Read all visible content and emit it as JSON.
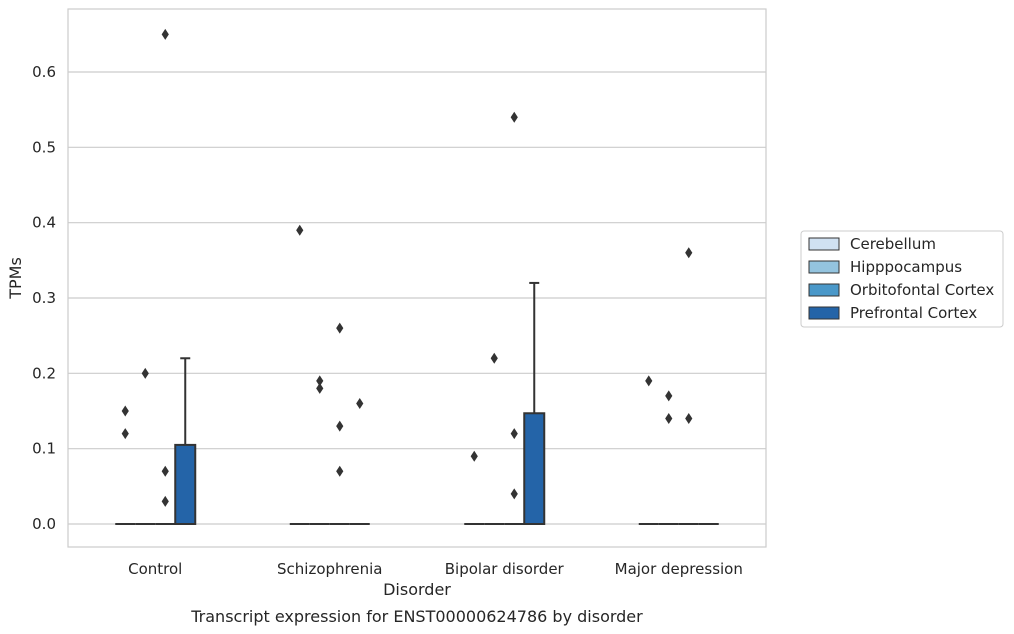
{
  "chart_data": {
    "type": "box",
    "title": "",
    "caption": "Transcript expression for ENST00000624786 by disorder",
    "xlabel": "Disorder",
    "ylabel": "TPMs",
    "ylim": [
      -0.032,
      0.68
    ],
    "yticks": [
      0.0,
      0.1,
      0.2,
      0.3,
      0.4,
      0.5,
      0.6
    ],
    "ytick_labels": [
      "0.0",
      "0.1",
      "0.2",
      "0.3",
      "0.4",
      "0.5",
      "0.6"
    ],
    "grid": true,
    "legend_position": "right",
    "categories": [
      "Control",
      "Schizophrenia",
      "Bipolar disorder",
      "Major depression"
    ],
    "series": [
      {
        "name": "Cerebellum",
        "color": "#d0e1f2",
        "boxes": [
          {
            "min": 0,
            "q1": 0,
            "median": 0,
            "q3": 0,
            "max": 0,
            "outliers": [
              0.15,
              0.12
            ]
          },
          {
            "min": 0,
            "q1": 0,
            "median": 0,
            "q3": 0,
            "max": 0,
            "outliers": [
              0.39
            ]
          },
          {
            "min": 0,
            "q1": 0,
            "median": 0,
            "q3": 0,
            "max": 0,
            "outliers": [
              0.09
            ]
          },
          {
            "min": 0,
            "q1": 0,
            "median": 0,
            "q3": 0,
            "max": 0,
            "outliers": [
              0.19
            ]
          }
        ]
      },
      {
        "name": "Hipppocampus",
        "color": "#94c4df",
        "boxes": [
          {
            "min": 0,
            "q1": 0,
            "median": 0,
            "q3": 0,
            "max": 0,
            "outliers": [
              0.2
            ]
          },
          {
            "min": 0,
            "q1": 0,
            "median": 0,
            "q3": 0,
            "max": 0,
            "outliers": [
              0.19,
              0.18
            ]
          },
          {
            "min": 0,
            "q1": 0,
            "median": 0,
            "q3": 0,
            "max": 0,
            "outliers": [
              0.22
            ]
          },
          {
            "min": 0,
            "q1": 0,
            "median": 0,
            "q3": 0,
            "max": 0,
            "outliers": [
              0.17,
              0.14
            ]
          }
        ]
      },
      {
        "name": "Orbitofontal Cortex",
        "color": "#4a98c9",
        "boxes": [
          {
            "min": 0,
            "q1": 0,
            "median": 0,
            "q3": 0,
            "max": 0,
            "outliers": [
              0.65,
              0.07,
              0.03
            ]
          },
          {
            "min": 0,
            "q1": 0,
            "median": 0,
            "q3": 0,
            "max": 0,
            "outliers": [
              0.26,
              0.13,
              0.07
            ]
          },
          {
            "min": 0,
            "q1": 0,
            "median": 0,
            "q3": 0,
            "max": 0,
            "outliers": [
              0.54,
              0.12,
              0.04
            ]
          },
          {
            "min": 0,
            "q1": 0,
            "median": 0,
            "q3": 0,
            "max": 0,
            "outliers": [
              0.36,
              0.14
            ]
          }
        ]
      },
      {
        "name": "Prefrontal Cortex",
        "color": "#2464a8",
        "boxes": [
          {
            "min": 0,
            "q1": 0,
            "median": 0,
            "q3": 0.105,
            "max": 0.22,
            "outliers": []
          },
          {
            "min": 0,
            "q1": 0,
            "median": 0,
            "q3": 0,
            "max": 0,
            "outliers": [
              0.16
            ]
          },
          {
            "min": 0,
            "q1": 0,
            "median": 0,
            "q3": 0.147,
            "max": 0.32,
            "outliers": []
          },
          {
            "min": 0,
            "q1": 0,
            "median": 0,
            "q3": 0,
            "max": 0,
            "outliers": []
          }
        ]
      }
    ],
    "colors": {
      "grid": "#cccccc",
      "frame": "#cccccc",
      "line": "#333333",
      "text": "#262626"
    }
  }
}
